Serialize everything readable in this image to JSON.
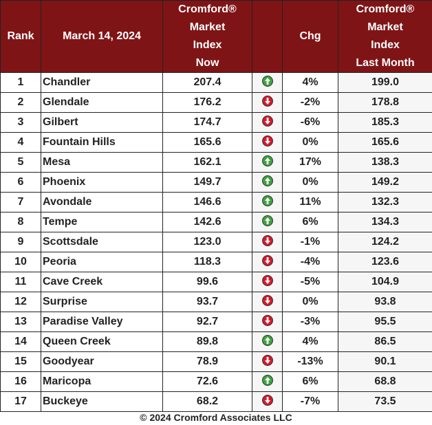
{
  "header": {
    "rank": "Rank",
    "date": "March 14, 2024",
    "now_lines": [
      "Cromford®",
      "Market",
      "Index",
      "Now"
    ],
    "chg": "Chg",
    "last_lines": [
      "Cromford®",
      "Market",
      "Index",
      "Last Month"
    ]
  },
  "colors": {
    "header_bg": "#7f1416",
    "up": "#3ca33c",
    "down": "#d8182a"
  },
  "rows": [
    {
      "rank": "1",
      "city": "Chandler",
      "now": "207.4",
      "trend": "up",
      "icon": "arrow-up-icon",
      "chg": "4%",
      "last": "199.0"
    },
    {
      "rank": "2",
      "city": "Glendale",
      "now": "176.2",
      "trend": "down",
      "icon": "arrow-down-icon",
      "chg": "-2%",
      "last": "178.8"
    },
    {
      "rank": "3",
      "city": "Gilbert",
      "now": "174.7",
      "trend": "down",
      "icon": "arrow-down-icon",
      "chg": "-6%",
      "last": "185.3"
    },
    {
      "rank": "4",
      "city": "Fountain Hills",
      "now": "165.6",
      "trend": "down",
      "icon": "arrow-down-icon",
      "chg": "0%",
      "last": "165.6"
    },
    {
      "rank": "5",
      "city": "Mesa",
      "now": "162.1",
      "trend": "up",
      "icon": "arrow-up-icon",
      "chg": "17%",
      "last": "138.3"
    },
    {
      "rank": "6",
      "city": "Phoenix",
      "now": "149.7",
      "trend": "up",
      "icon": "arrow-up-icon",
      "chg": "0%",
      "last": "149.2"
    },
    {
      "rank": "7",
      "city": "Avondale",
      "now": "146.6",
      "trend": "up",
      "icon": "arrow-up-icon",
      "chg": "11%",
      "last": "132.3"
    },
    {
      "rank": "8",
      "city": "Tempe",
      "now": "142.6",
      "trend": "up",
      "icon": "arrow-up-icon",
      "chg": "6%",
      "last": "134.3"
    },
    {
      "rank": "9",
      "city": "Scottsdale",
      "now": "123.0",
      "trend": "down",
      "icon": "arrow-down-icon",
      "chg": "-1%",
      "last": "124.2"
    },
    {
      "rank": "10",
      "city": "Peoria",
      "now": "118.3",
      "trend": "down",
      "icon": "arrow-down-icon",
      "chg": "-4%",
      "last": "123.6"
    },
    {
      "rank": "11",
      "city": "Cave Creek",
      "now": "99.6",
      "trend": "down",
      "icon": "arrow-down-icon",
      "chg": "-5%",
      "last": "104.9"
    },
    {
      "rank": "12",
      "city": "Surprise",
      "now": "93.7",
      "trend": "down",
      "icon": "arrow-down-icon",
      "chg": "0%",
      "last": "93.8"
    },
    {
      "rank": "13",
      "city": "Paradise Valley",
      "now": "92.7",
      "trend": "down",
      "icon": "arrow-down-icon",
      "chg": "-3%",
      "last": "95.5"
    },
    {
      "rank": "14",
      "city": "Queen Creek",
      "now": "89.8",
      "trend": "up",
      "icon": "arrow-up-icon",
      "chg": "4%",
      "last": "86.5"
    },
    {
      "rank": "15",
      "city": "Goodyear",
      "now": "78.9",
      "trend": "down",
      "icon": "arrow-down-icon",
      "chg": "-13%",
      "last": "90.1"
    },
    {
      "rank": "16",
      "city": "Maricopa",
      "now": "72.6",
      "trend": "up",
      "icon": "arrow-up-icon",
      "chg": "6%",
      "last": "68.8"
    },
    {
      "rank": "17",
      "city": "Buckeye",
      "now": "68.2",
      "trend": "down",
      "icon": "arrow-down-icon",
      "chg": "-7%",
      "last": "73.5"
    }
  ],
  "footer": "© 2024 Cromford Associates LLC"
}
